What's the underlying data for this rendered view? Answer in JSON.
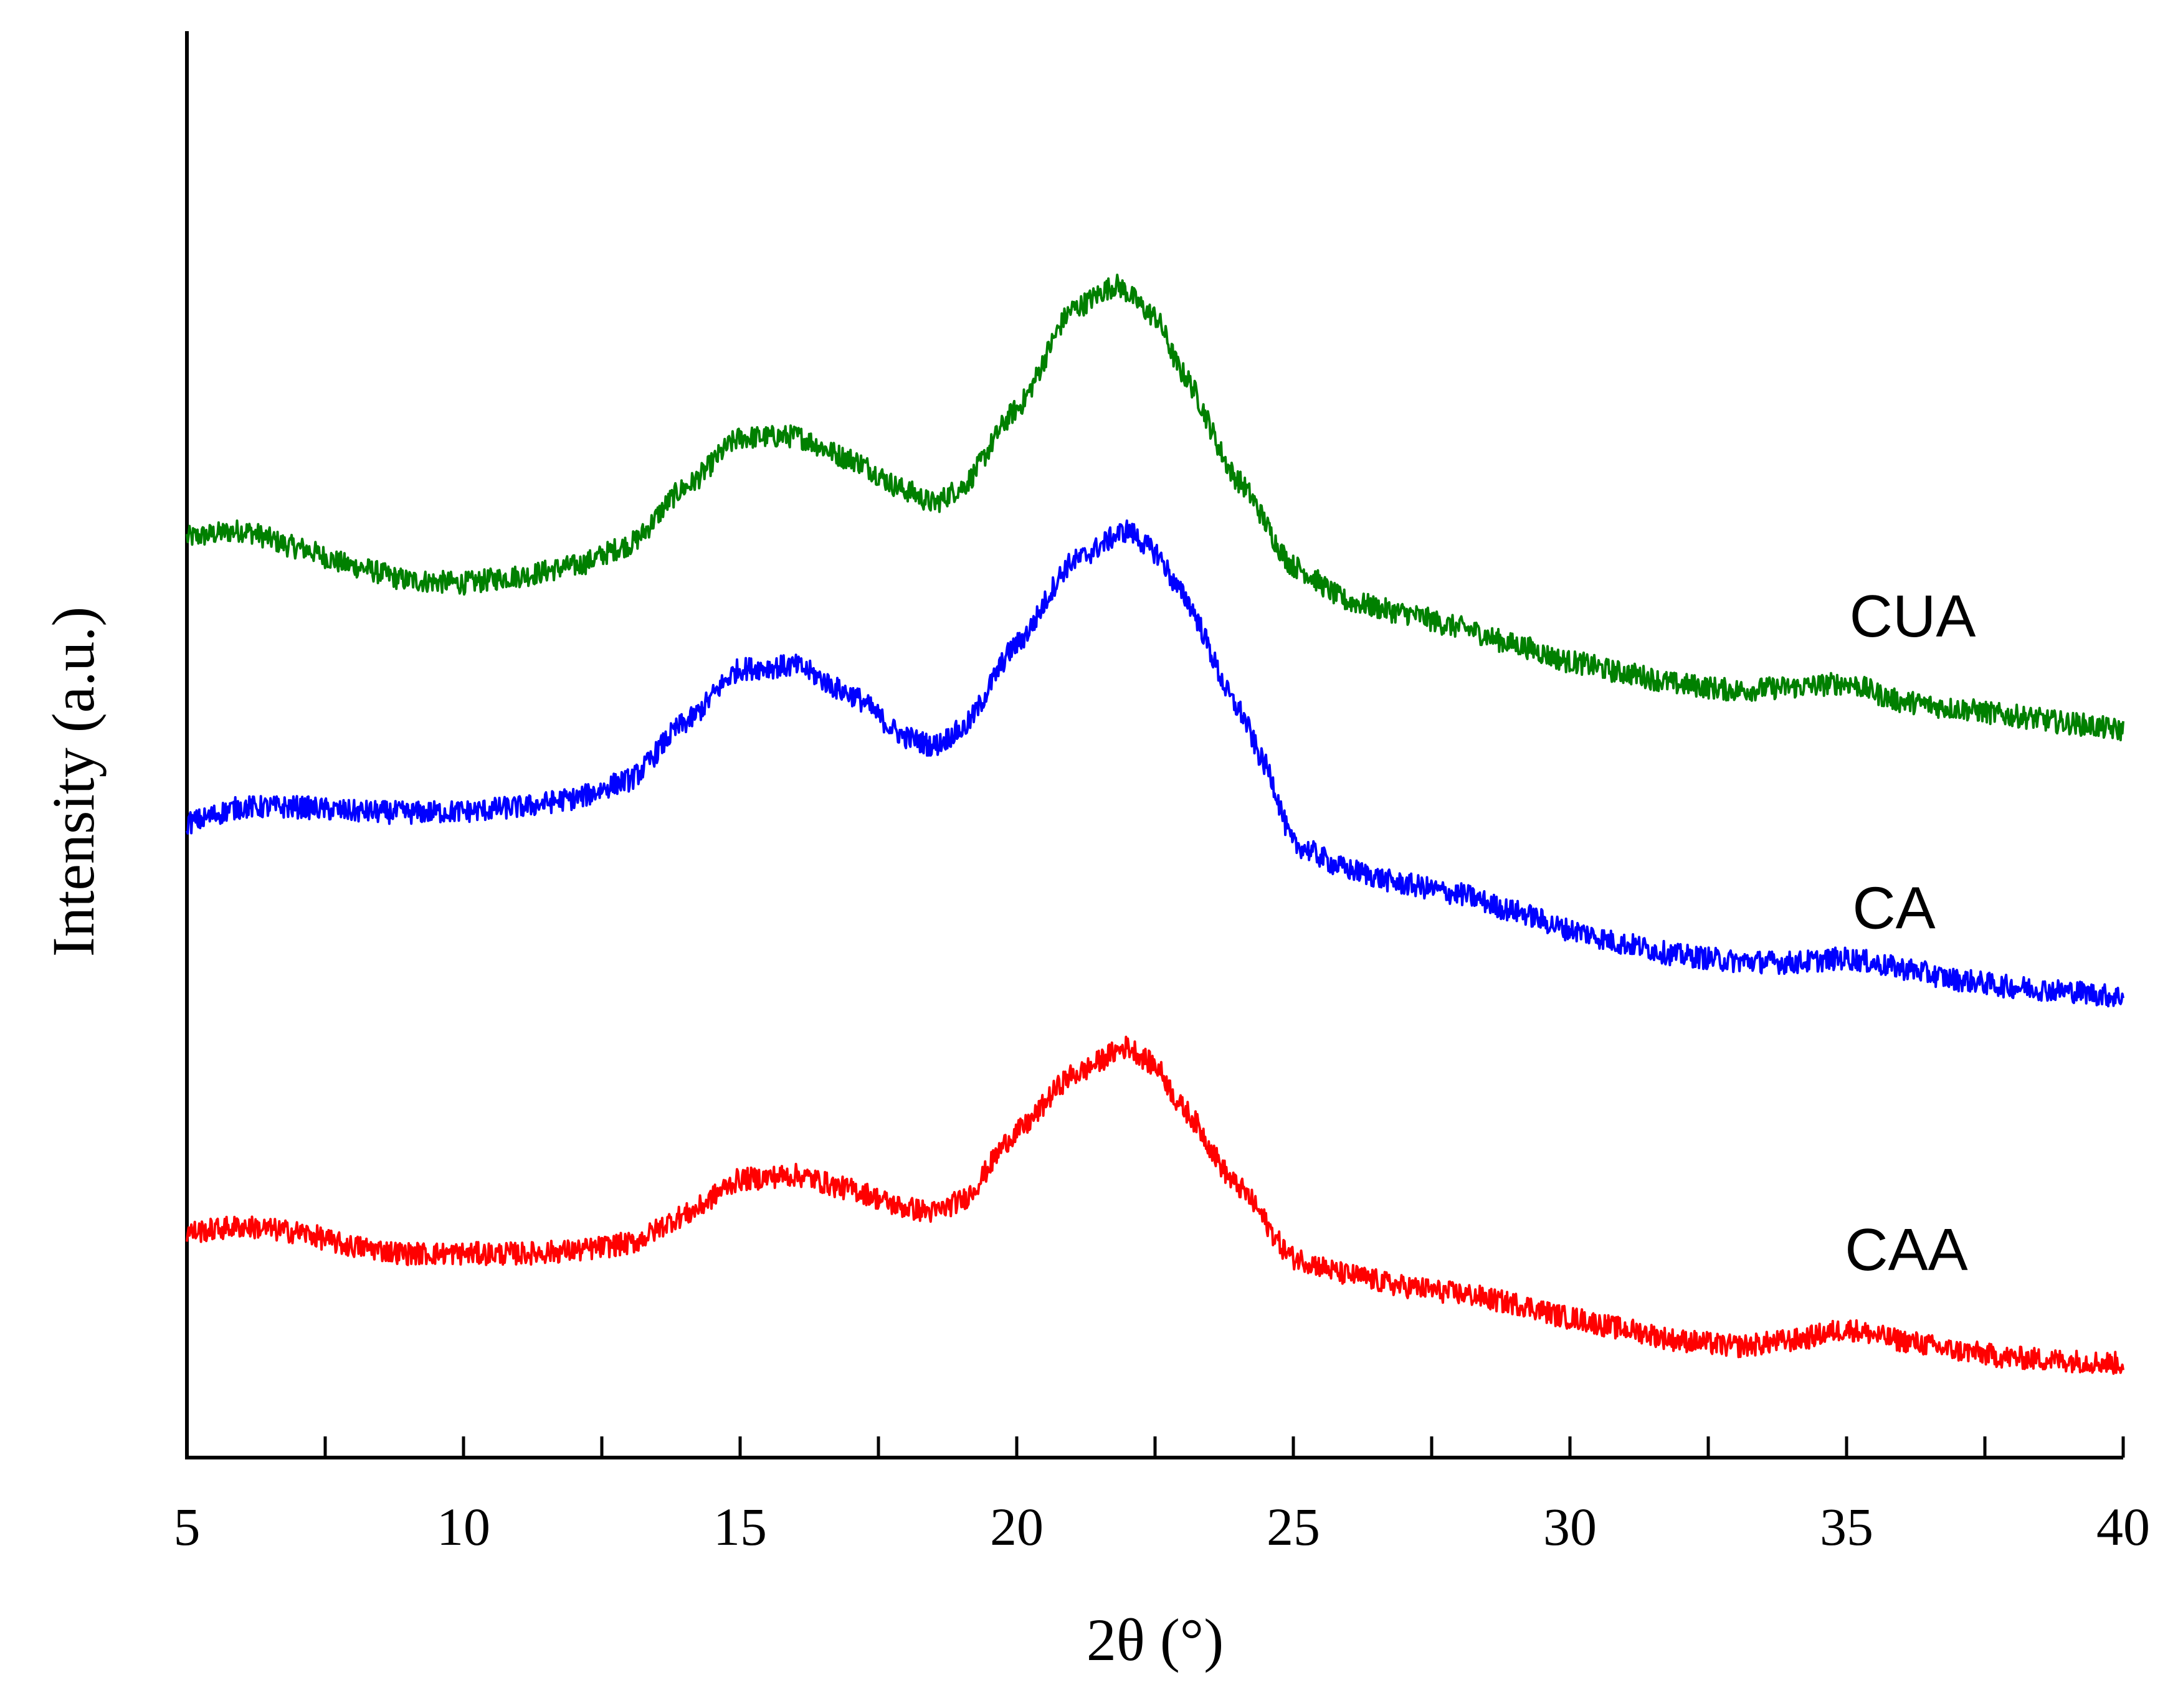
{
  "chart_data": {
    "type": "line",
    "xlabel": "2θ (°)",
    "ylabel": "Intensity (a.u.)",
    "xlim": [
      5,
      40
    ],
    "ylim": [
      0,
      100
    ],
    "x_ticks": [
      "5",
      "10",
      "15",
      "20",
      "25",
      "30",
      "35",
      "40"
    ],
    "y_ticks_shown": false,
    "legend": "inline labels at right end of curves",
    "series": [
      {
        "name": "CUA",
        "color": "#008000",
        "x": [
          5,
          6,
          7,
          8,
          9,
          10,
          11,
          12,
          13,
          14,
          15,
          16,
          17,
          18,
          18.5,
          19,
          20,
          21,
          21.8,
          22.5,
          23,
          24,
          25,
          26,
          27,
          28,
          29,
          30,
          31,
          32,
          33,
          34,
          35,
          36,
          37,
          38,
          39,
          40
        ],
        "y": [
          64.5,
          65.0,
          63.8,
          62.5,
          61.5,
          61.3,
          61.8,
          62.5,
          64.0,
          68.0,
          71.5,
          71.6,
          70.0,
          67.8,
          66.9,
          68.0,
          73.5,
          80.5,
          82.2,
          80.0,
          76.0,
          68.5,
          62.5,
          60.0,
          59.2,
          58.2,
          57.0,
          55.8,
          55.0,
          54.2,
          53.8,
          54.0,
          54.3,
          53.0,
          52.5,
          52.0,
          51.5,
          51.0
        ]
      },
      {
        "name": "CA",
        "color": "#0000ff",
        "x": [
          5,
          6,
          7,
          8,
          9,
          10,
          11,
          12,
          13,
          14,
          15,
          16,
          17,
          18,
          18.5,
          19,
          20,
          21,
          22,
          22.5,
          23,
          24,
          24.5,
          25,
          26,
          27,
          28,
          29,
          30,
          31,
          32,
          33,
          34,
          35,
          36,
          37,
          38,
          39,
          40
        ],
        "y": [
          44.5,
          45.6,
          45.6,
          45.3,
          45.2,
          45.3,
          45.6,
          46.2,
          47.5,
          51.5,
          55.3,
          55.5,
          53.5,
          50.5,
          49.9,
          51.0,
          57.0,
          62.8,
          65.0,
          63.5,
          60.5,
          52.5,
          48.5,
          43.0,
          41.2,
          40.2,
          39.5,
          38.3,
          37.0,
          36.0,
          35.2,
          34.8,
          34.7,
          35.0,
          34.3,
          33.5,
          33.0,
          32.7,
          32.3
        ]
      },
      {
        "name": "CAA",
        "color": "#ff0000",
        "x": [
          5,
          6,
          7,
          8,
          9,
          10,
          11,
          12,
          13,
          14,
          15,
          16,
          17,
          18,
          18.5,
          19,
          20,
          21,
          22,
          22.5,
          23,
          24,
          25,
          26,
          27,
          28,
          29,
          30,
          31,
          32,
          33,
          34,
          35,
          36,
          37,
          38,
          39,
          40
        ],
        "y": [
          15.8,
          16.2,
          15.8,
          14.8,
          14.3,
          14.3,
          14.3,
          14.5,
          15.0,
          17.0,
          19.5,
          19.8,
          18.8,
          17.5,
          17.2,
          18.0,
          22.8,
          26.8,
          28.8,
          27.5,
          24.5,
          19.0,
          14.0,
          12.8,
          12.0,
          11.5,
          10.8,
          9.8,
          9.0,
          8.2,
          7.8,
          8.2,
          9.0,
          8.2,
          7.5,
          7.0,
          6.8,
          6.6
        ]
      }
    ]
  }
}
